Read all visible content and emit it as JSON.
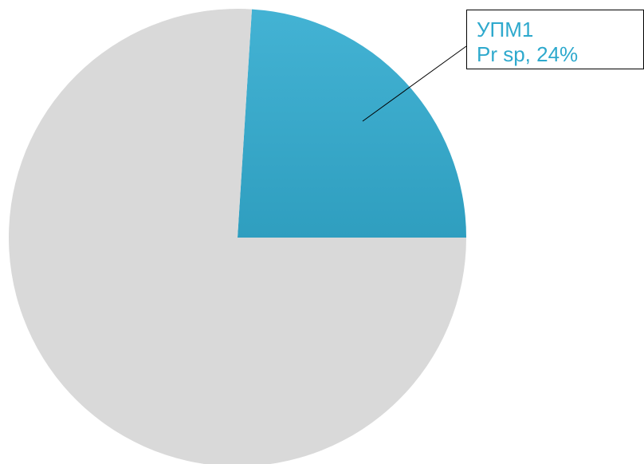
{
  "chart_data": {
    "type": "pie",
    "categories": [
      "УПМ1",
      null
    ],
    "values": [
      24,
      76
    ],
    "value_labels": [
      "Pr sp, 24%",
      null
    ],
    "colors": [
      "#33acd0",
      "#d9d9d9"
    ]
  }
}
